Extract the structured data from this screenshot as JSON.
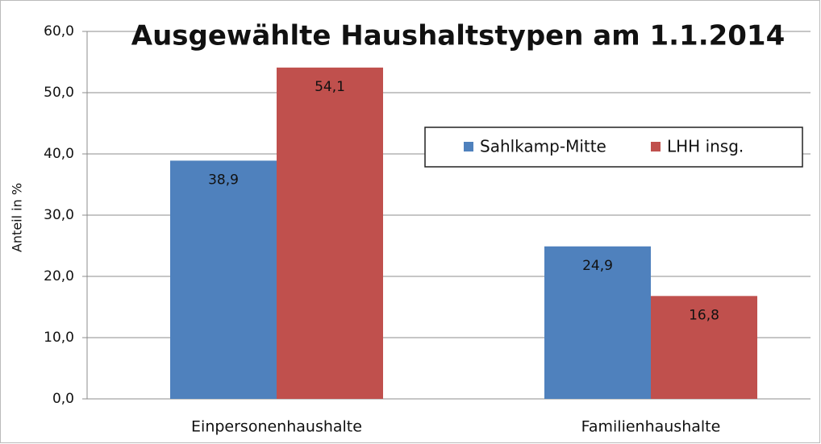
{
  "chart_data": {
    "type": "bar",
    "title": "Ausgewählte Haushaltstypen am 1.1.2014",
    "y_label": "Anteil in %",
    "categories": [
      "Einpersonenhaushalte",
      "Familienhaushalte"
    ],
    "series": [
      {
        "name": "Sahlkamp-Mitte",
        "color": "#4f81bd",
        "values": [
          38.9,
          24.9
        ],
        "value_labels": [
          "38,9",
          "24,9"
        ]
      },
      {
        "name": "LHH insg.",
        "color": "#c0504d",
        "values": [
          54.1,
          16.8
        ],
        "value_labels": [
          "54,1",
          "16,8"
        ]
      }
    ],
    "ylim": [
      0,
      60
    ],
    "yticks": [
      {
        "value": 0,
        "label": "0,0"
      },
      {
        "value": 10,
        "label": "10,0"
      },
      {
        "value": 20,
        "label": "20,0"
      },
      {
        "value": 30,
        "label": "30,0"
      },
      {
        "value": 40,
        "label": "40,0"
      },
      {
        "value": 50,
        "label": "50,0"
      },
      {
        "value": 60,
        "label": "60,0"
      }
    ],
    "grid": true
  }
}
